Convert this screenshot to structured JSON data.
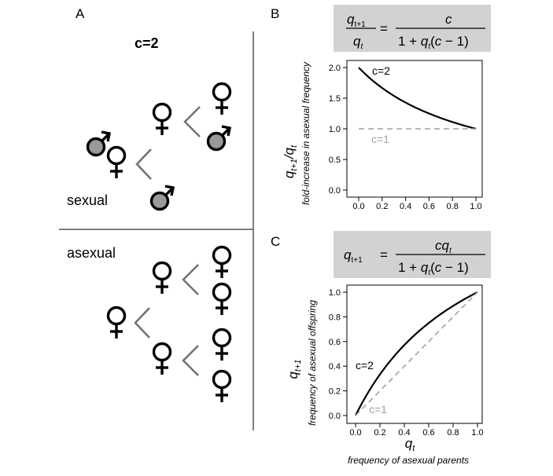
{
  "panel_a": {
    "letter": "A",
    "title": "c=2",
    "sexual_label": "sexual",
    "asexual_label": "asexual",
    "male_fill": "#9a9a9a"
  },
  "panel_b": {
    "letter": "B",
    "equation": {
      "lhs_num": "q",
      "lhs_num_sub": "t+1",
      "lhs_den": "q",
      "lhs_den_sub": "t",
      "eq": "=",
      "rhs_num": "c",
      "rhs_den_1": "1 + ",
      "rhs_den_q": "q",
      "rhs_den_sub": "t",
      "rhs_den_2": "(",
      "rhs_den_c": "c",
      "rhs_den_3": " − 1)"
    },
    "ylabel_main": "q",
    "ylabel_sub1": "t+1",
    "ylabel_mid": "/q",
    "ylabel_sub2": "t",
    "ylabel_desc": "fold-increase in asexual frequency"
  },
  "panel_c": {
    "letter": "C",
    "equation": {
      "lhs": "q",
      "lhs_sub": "t+1",
      "eq": "=",
      "rhs_num_c": "c",
      "rhs_num_q": "q",
      "rhs_num_sub": "t",
      "rhs_den_1": "1 + ",
      "rhs_den_q": "q",
      "rhs_den_sub": "t",
      "rhs_den_2": "(",
      "rhs_den_c": "c",
      "rhs_den_3": " − 1)"
    },
    "ylabel_main": "q",
    "ylabel_sub": "t+1",
    "ylabel_desc": "frequency of asexual offspring",
    "xlabel_main": "q",
    "xlabel_sub": "t",
    "xlabel_desc": "frequency of asexual parents"
  },
  "chart_data": [
    {
      "type": "line",
      "panel": "B",
      "x": [
        0,
        0.1,
        0.2,
        0.3,
        0.4,
        0.5,
        0.6,
        0.7,
        0.8,
        0.9,
        1.0
      ],
      "series": [
        {
          "name": "c=2",
          "style": "solid",
          "color": "#000000",
          "values": [
            2.0,
            1.818,
            1.667,
            1.538,
            1.429,
            1.333,
            1.25,
            1.176,
            1.111,
            1.053,
            1.0
          ]
        },
        {
          "name": "c=1",
          "style": "dashed",
          "color": "#a0a0a0",
          "values": [
            1.0,
            1.0,
            1.0,
            1.0,
            1.0,
            1.0,
            1.0,
            1.0,
            1.0,
            1.0,
            1.0
          ]
        }
      ],
      "xlim": [
        0,
        1
      ],
      "ylim": [
        0,
        2
      ],
      "xticks": [
        "0.0",
        "0.2",
        "0.4",
        "0.6",
        "0.8",
        "1.0"
      ],
      "yticks": [
        "0.0",
        "0.5",
        "1.0",
        "1.5",
        "2.0"
      ]
    },
    {
      "type": "line",
      "panel": "C",
      "x": [
        0,
        0.1,
        0.2,
        0.3,
        0.4,
        0.5,
        0.6,
        0.7,
        0.8,
        0.9,
        1.0
      ],
      "series": [
        {
          "name": "c=2",
          "style": "solid",
          "color": "#000000",
          "values": [
            0.0,
            0.182,
            0.333,
            0.462,
            0.571,
            0.667,
            0.75,
            0.824,
            0.889,
            0.947,
            1.0
          ]
        },
        {
          "name": "c=1",
          "style": "dashed",
          "color": "#a0a0a0",
          "values": [
            0.0,
            0.1,
            0.2,
            0.3,
            0.4,
            0.5,
            0.6,
            0.7,
            0.8,
            0.9,
            1.0
          ]
        }
      ],
      "xlim": [
        0,
        1
      ],
      "ylim": [
        0,
        1
      ],
      "xticks": [
        "0.0",
        "0.2",
        "0.4",
        "0.6",
        "0.8",
        "1.0"
      ],
      "yticks": [
        "0.0",
        "0.2",
        "0.4",
        "0.6",
        "0.8",
        "1.0"
      ]
    }
  ]
}
